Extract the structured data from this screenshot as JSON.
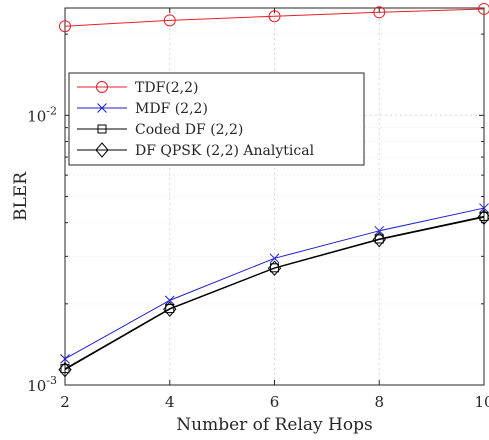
{
  "chart_data": {
    "type": "line",
    "title": "",
    "xlabel": "Number of Relay Hops",
    "ylabel": "BLER",
    "xscale": "linear",
    "yscale": "log",
    "xlim": [
      2,
      10
    ],
    "ylim": [
      0.001,
      0.025
    ],
    "grid": true,
    "legend_position": "upper-left",
    "x": [
      2,
      4,
      6,
      8,
      10
    ],
    "x_ticks": [
      "2",
      "4",
      "6",
      "8",
      "10"
    ],
    "y_ticks": [
      {
        "value": 0.001,
        "base": "10",
        "exp": "-3"
      },
      {
        "value": 0.01,
        "base": "10",
        "exp": "-2"
      }
    ],
    "series": [
      {
        "name": "TDF(2,2)",
        "color": "#e8202a",
        "marker": "circle",
        "values": [
          0.0214,
          0.0225,
          0.0233,
          0.0241,
          0.0248
        ]
      },
      {
        "name": "MDF (2,2)",
        "color": "#1f1fcf",
        "marker": "x",
        "values": [
          0.00125,
          0.00206,
          0.00295,
          0.00373,
          0.00453
        ]
      },
      {
        "name": "Coded DF (2,2)",
        "color": "#000000",
        "marker": "square",
        "values": [
          0.00115,
          0.00192,
          0.00272,
          0.00348,
          0.00422
        ]
      },
      {
        "name": "DF QPSK (2,2) Analytical",
        "color": "#000000",
        "marker": "diamond",
        "values": [
          0.00114,
          0.00191,
          0.00271,
          0.00346,
          0.00419
        ]
      }
    ]
  }
}
